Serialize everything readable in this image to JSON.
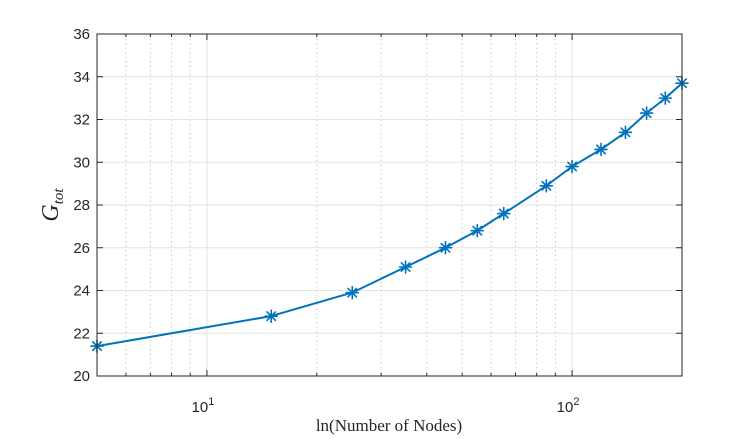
{
  "chart_data": {
    "type": "line",
    "x_scale": "log",
    "xlabel": "ln(Number of Nodes)",
    "ylabel_main": "G",
    "ylabel_sub": "tot",
    "xlim": [
      5,
      200
    ],
    "ylim": [
      20,
      36
    ],
    "x_major_ticks": [
      10,
      100
    ],
    "x_tick_labels": [
      {
        "base": "10",
        "exp": "1"
      },
      {
        "base": "10",
        "exp": "2"
      }
    ],
    "x_minor_ticks": [
      5,
      6,
      7,
      8,
      9,
      20,
      30,
      40,
      50,
      60,
      70,
      80,
      90,
      200
    ],
    "y_ticks": [
      20,
      22,
      24,
      26,
      28,
      30,
      32,
      34,
      36
    ],
    "y_tick_labels": [
      "20",
      "22",
      "24",
      "26",
      "28",
      "30",
      "32",
      "34",
      "36"
    ],
    "grid": true,
    "minor_grid": true,
    "marker": "asterisk",
    "color": "#0072BD",
    "series": [
      {
        "x": [
          5,
          15,
          25,
          35,
          45,
          55,
          65,
          85,
          100,
          120,
          140,
          160,
          180,
          200
        ],
        "values": [
          21.4,
          22.8,
          23.9,
          25.1,
          26.0,
          26.8,
          27.6,
          28.9,
          29.8,
          30.6,
          31.4,
          32.3,
          33.0,
          33.7
        ]
      }
    ]
  }
}
